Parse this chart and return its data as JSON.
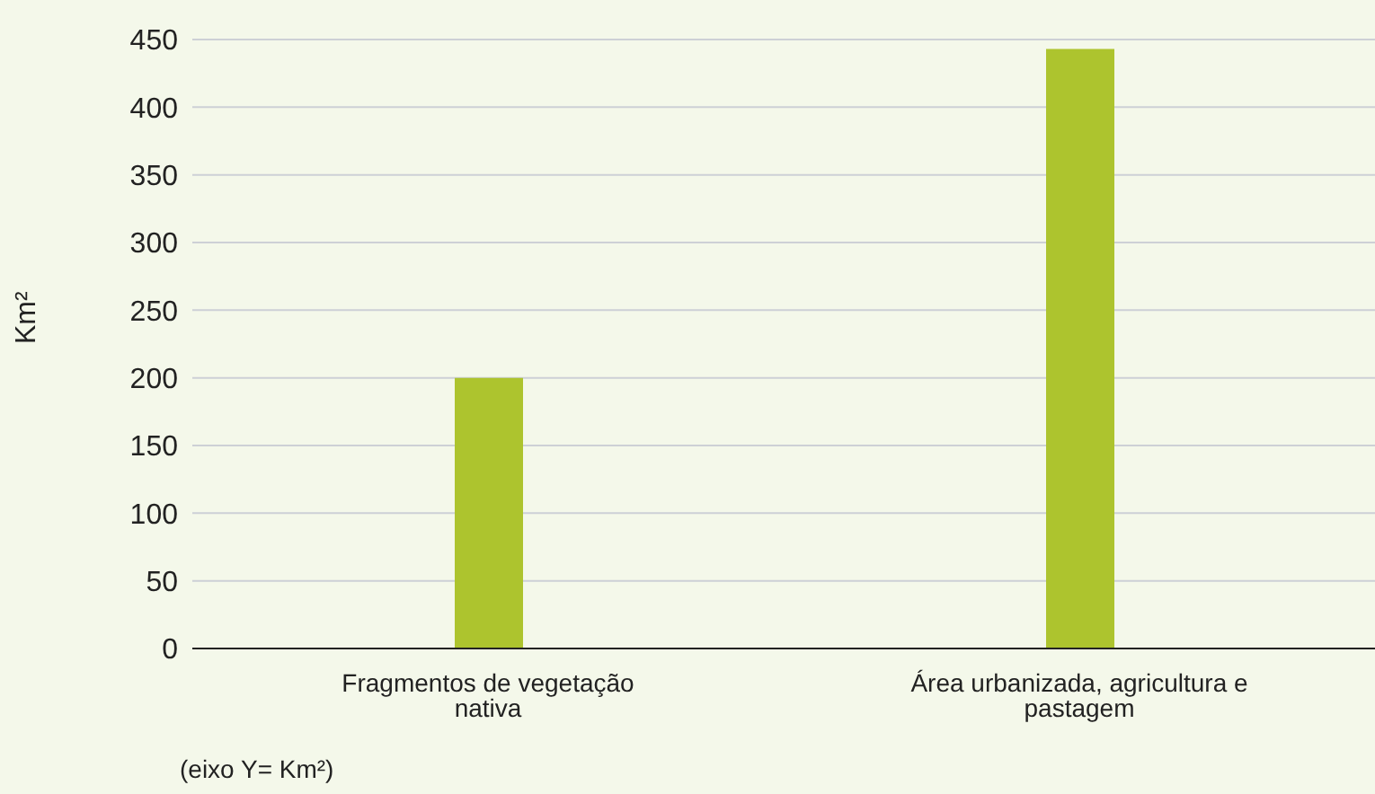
{
  "chart_data": {
    "type": "bar",
    "ylabel": "Km²",
    "categories": [
      "Fragmentos de vegetação nativa",
      "Área urbanizada, agricultura e pastagem"
    ],
    "values": [
      200,
      443
    ],
    "color": "#adc42e",
    "ylim": [
      0,
      450
    ],
    "yticks": [
      0,
      50,
      100,
      150,
      200,
      250,
      300,
      350,
      400,
      450
    ],
    "grid": "y",
    "annotations": [
      "(eixo Y= Km²)"
    ]
  }
}
